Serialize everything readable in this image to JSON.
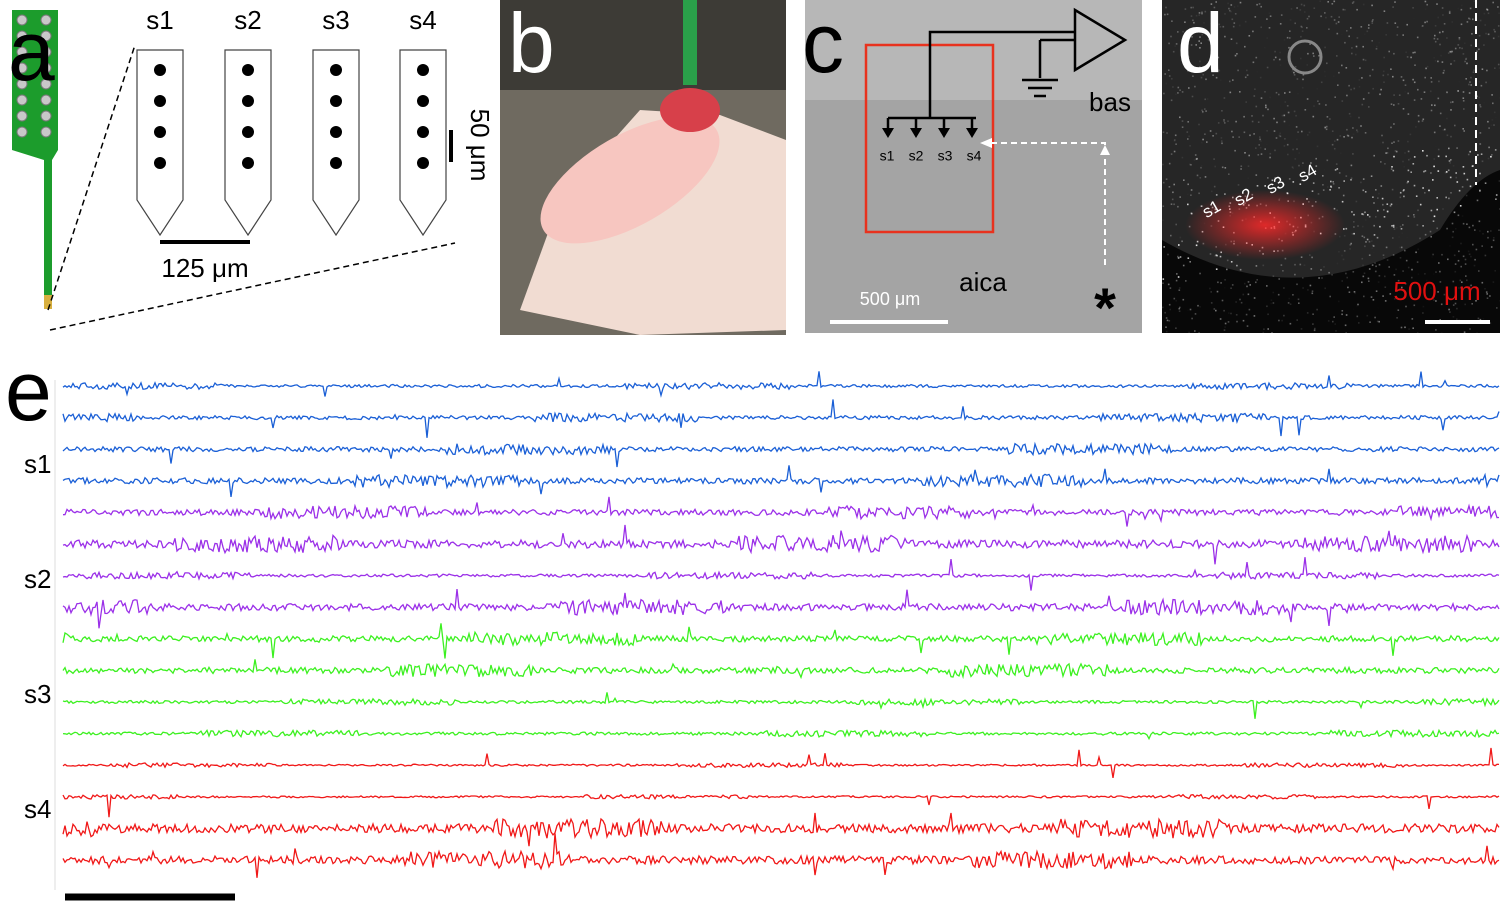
{
  "panels": [
    {
      "label": "a",
      "sites": [
        "s1",
        "s2",
        "s3",
        "s4"
      ],
      "scale_x": "125 μm",
      "scale_y": "50 μm"
    },
    {
      "label": "b"
    },
    {
      "label": "c",
      "sites": [
        "s1",
        "s2",
        "s3",
        "s4"
      ],
      "vessels": [
        "bas",
        "aica"
      ],
      "scale": "500 μm",
      "marker": "*"
    },
    {
      "label": "d",
      "sites": [
        "s1",
        "s2",
        "s3",
        "s4"
      ],
      "scale": "500 μm"
    },
    {
      "label": "e",
      "shanks": [
        "s1",
        "s2",
        "s3",
        "s4"
      ]
    }
  ]
}
